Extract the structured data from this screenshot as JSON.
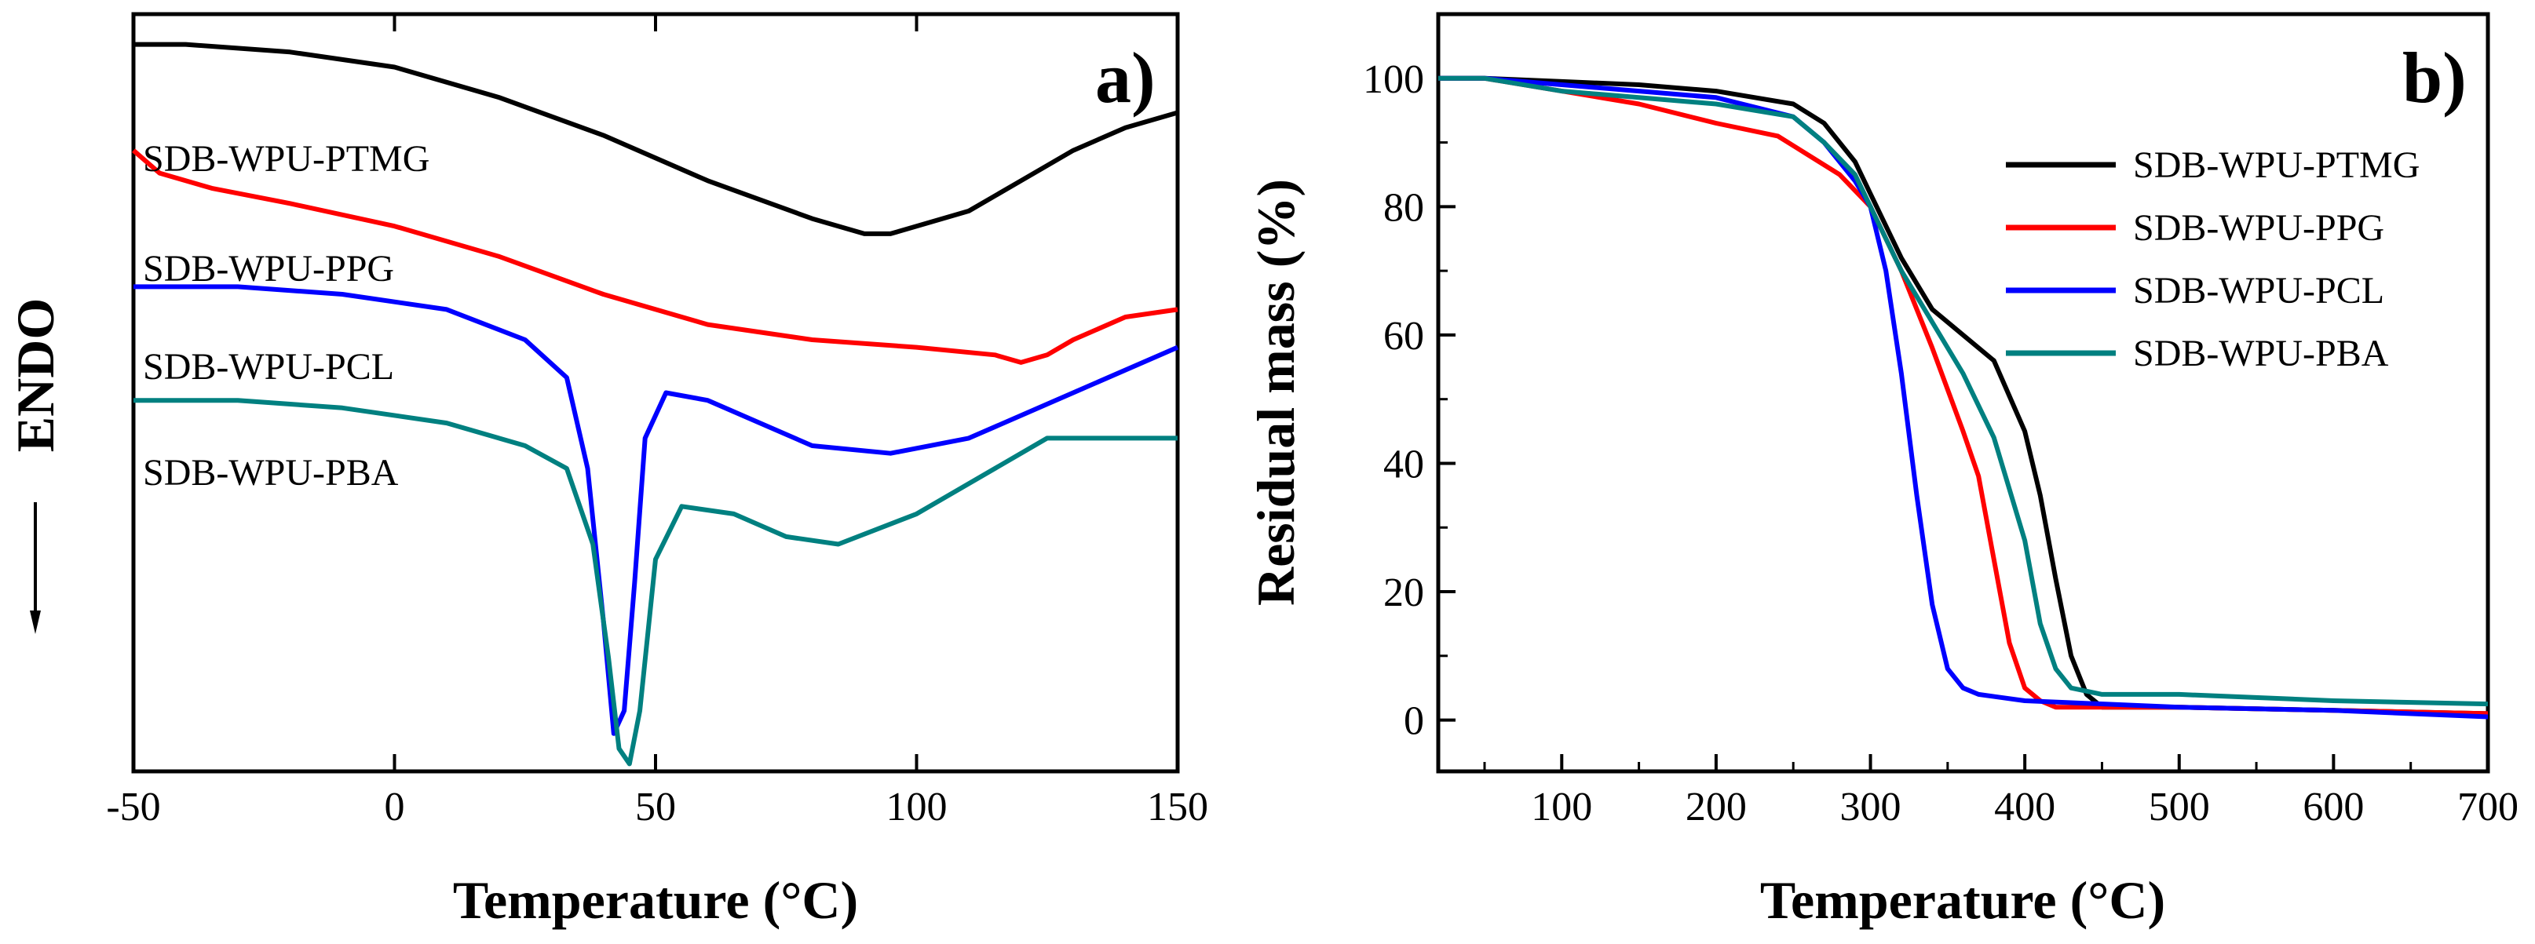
{
  "chart_data": [
    {
      "panel_label": "a)",
      "type": "line",
      "title": "",
      "xlabel": "Temperature (°C)",
      "ylabel": "ENDO",
      "xlim": [
        -50,
        150
      ],
      "xticks": [
        -50,
        0,
        50,
        100,
        150
      ],
      "xtick_labels": [
        "-50",
        "0",
        "50",
        "100",
        "150"
      ],
      "y_units": "arbitrary (heat flow, endothermic down)",
      "ylim": [
        0,
        100
      ],
      "grid": false,
      "series": [
        {
          "name": "SDB-WPU-PTMG",
          "color": "#000000",
          "x": [
            -50,
            -40,
            -20,
            0,
            20,
            40,
            60,
            80,
            90,
            95,
            100,
            110,
            120,
            130,
            140,
            150
          ],
          "y": [
            96,
            96,
            95,
            93,
            89,
            84,
            78,
            73,
            71,
            71,
            72,
            74,
            78,
            82,
            85,
            87
          ]
        },
        {
          "name": "SDB-WPU-PPG",
          "color": "#ff0000",
          "x": [
            -50,
            -45,
            -35,
            -20,
            0,
            20,
            40,
            60,
            80,
            100,
            115,
            120,
            125,
            130,
            140,
            150
          ],
          "y": [
            82,
            79,
            77,
            75,
            72,
            68,
            63,
            59,
            57,
            56,
            55,
            54,
            55,
            57,
            60,
            61
          ]
        },
        {
          "name": "SDB-WPU-PCL",
          "color": "#0000ff",
          "x": [
            -50,
            -30,
            -10,
            10,
            25,
            33,
            37,
            40,
            42,
            44,
            46,
            48,
            52,
            60,
            70,
            80,
            95,
            110,
            130,
            150
          ],
          "y": [
            64,
            64,
            63,
            61,
            57,
            52,
            40,
            20,
            5,
            8,
            25,
            44,
            50,
            49,
            46,
            43,
            42,
            44,
            50,
            56
          ]
        },
        {
          "name": "SDB-WPU-PBA",
          "color": "#008080",
          "x": [
            -50,
            -30,
            -10,
            10,
            25,
            33,
            38,
            41,
            43,
            45,
            47,
            50,
            55,
            65,
            75,
            85,
            100,
            115,
            125,
            140,
            150
          ],
          "y": [
            49,
            49,
            48,
            46,
            43,
            40,
            30,
            15,
            3,
            1,
            8,
            28,
            35,
            34,
            31,
            30,
            34,
            40,
            44,
            44,
            44
          ]
        }
      ]
    },
    {
      "panel_label": "b)",
      "type": "line",
      "title": "",
      "xlabel": "Temperature (°C)",
      "ylabel": "Residual mass (%)",
      "xlim": [
        20,
        700
      ],
      "ylim": [
        -8,
        110
      ],
      "xticks": [
        100,
        200,
        300,
        400,
        500,
        600,
        700
      ],
      "xtick_labels": [
        "100",
        "200",
        "300",
        "400",
        "500",
        "600",
        "700"
      ],
      "yticks": [
        0,
        20,
        40,
        60,
        80,
        100
      ],
      "ytick_labels": [
        "0",
        "20",
        "40",
        "60",
        "80",
        "100"
      ],
      "grid": false,
      "legend_position": "top-right",
      "series": [
        {
          "name": "SDB-WPU-PTMG",
          "color": "#000000",
          "x": [
            20,
            50,
            100,
            150,
            200,
            250,
            270,
            290,
            300,
            320,
            340,
            360,
            380,
            400,
            410,
            420,
            430,
            440,
            450,
            500,
            600,
            700
          ],
          "y": [
            100,
            100,
            99.5,
            99,
            98,
            96,
            93,
            87,
            82,
            72,
            64,
            60,
            56,
            45,
            35,
            22,
            10,
            4,
            2,
            2,
            1.5,
            1
          ]
        },
        {
          "name": "SDB-WPU-PPG",
          "color": "#ff0000",
          "x": [
            20,
            50,
            100,
            150,
            200,
            240,
            260,
            280,
            300,
            320,
            340,
            360,
            370,
            380,
            390,
            400,
            410,
            420,
            450,
            500,
            600,
            700
          ],
          "y": [
            100,
            100,
            98,
            96,
            93,
            91,
            88,
            85,
            80,
            70,
            58,
            45,
            38,
            25,
            12,
            5,
            3,
            2,
            2,
            2,
            1.5,
            1
          ]
        },
        {
          "name": "SDB-WPU-PCL",
          "color": "#0000ff",
          "x": [
            20,
            50,
            100,
            150,
            200,
            250,
            270,
            290,
            300,
            310,
            320,
            330,
            340,
            350,
            360,
            370,
            400,
            500,
            600,
            700
          ],
          "y": [
            100,
            100,
            99,
            98,
            97,
            94,
            90,
            84,
            80,
            70,
            54,
            35,
            18,
            8,
            5,
            4,
            3,
            2,
            1.5,
            0.5
          ]
        },
        {
          "name": "SDB-WPU-PBA",
          "color": "#008080",
          "x": [
            20,
            50,
            100,
            150,
            200,
            250,
            270,
            290,
            300,
            320,
            340,
            360,
            380,
            400,
            410,
            420,
            430,
            450,
            500,
            600,
            700
          ],
          "y": [
            100,
            100,
            98,
            97,
            96,
            94,
            90,
            85,
            80,
            70,
            62,
            54,
            44,
            28,
            15,
            8,
            5,
            4,
            4,
            3,
            2.5
          ]
        }
      ]
    }
  ]
}
